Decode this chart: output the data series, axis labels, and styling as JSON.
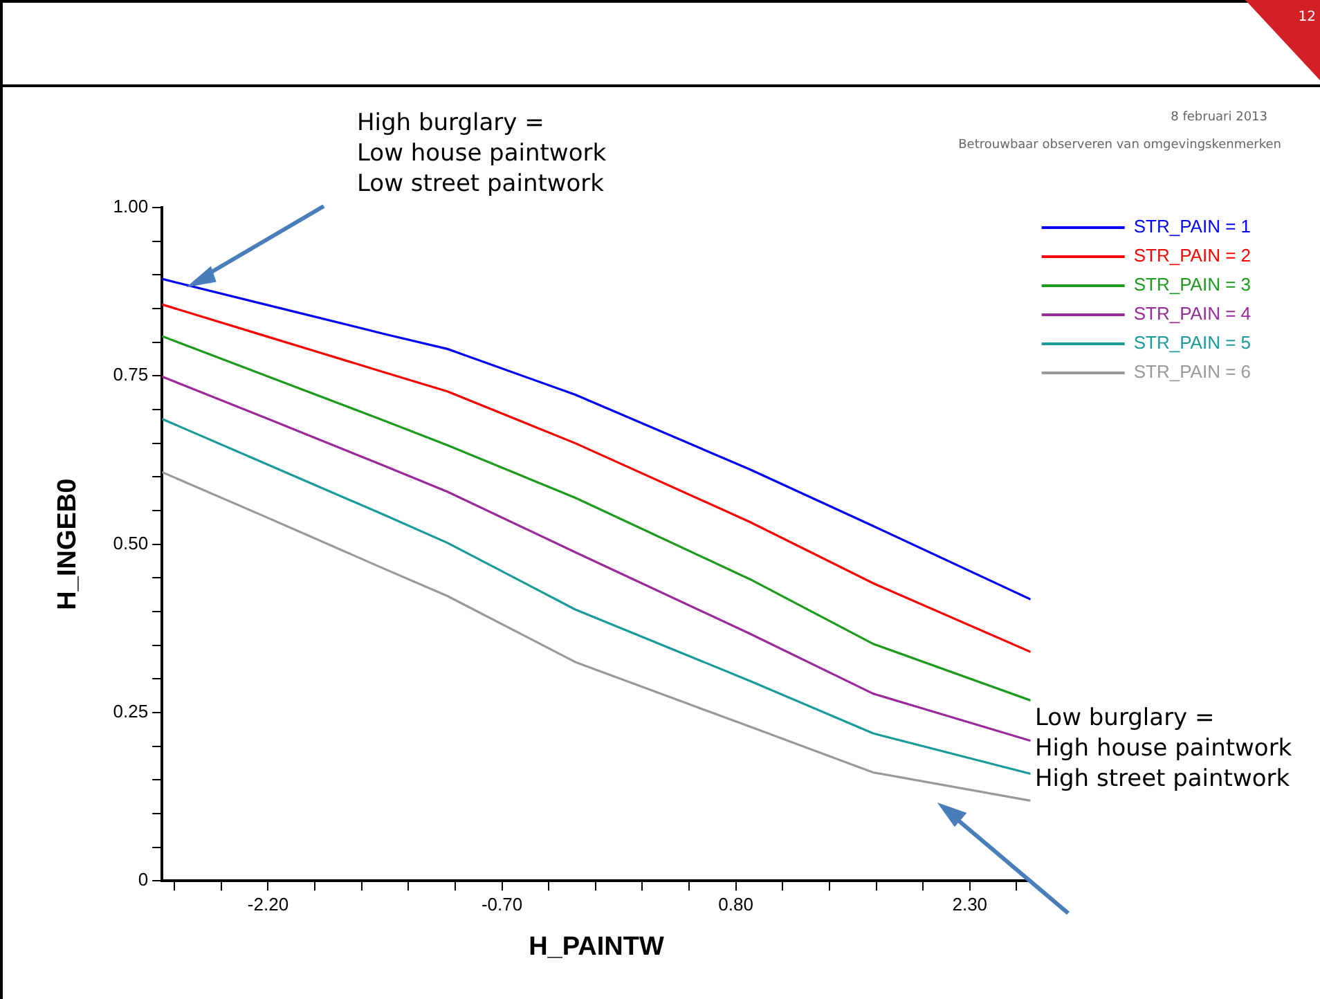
{
  "chart_data": {
    "type": "line",
    "xlabel": "H_PAINTW",
    "ylabel": "H_INGEB0",
    "x": [
      -2.88,
      -2.2,
      -1.45,
      -1.05,
      -0.23,
      0.89,
      1.68,
      2.69
    ],
    "series": [
      {
        "name": "STR_PAIN = 1",
        "color": "#0000ff",
        "values": [
          0.894,
          0.855,
          0.812,
          0.79,
          0.722,
          0.611,
          0.527,
          0.418
        ]
      },
      {
        "name": "STR_PAIN = 2",
        "color": "#ff0000",
        "values": [
          0.856,
          0.808,
          0.755,
          0.727,
          0.65,
          0.533,
          0.442,
          0.34
        ]
      },
      {
        "name": "STR_PAIN = 3",
        "color": "#1e9a1e",
        "values": [
          0.809,
          0.749,
          0.683,
          0.647,
          0.569,
          0.448,
          0.352,
          0.268
        ]
      },
      {
        "name": "STR_PAIN = 4",
        "color": "#9a2a9a",
        "values": [
          0.749,
          0.686,
          0.616,
          0.578,
          0.488,
          0.367,
          0.278,
          0.208
        ]
      },
      {
        "name": "STR_PAIN = 5",
        "color": "#1a9a9a",
        "values": [
          0.686,
          0.618,
          0.543,
          0.502,
          0.403,
          0.297,
          0.219,
          0.159
        ]
      },
      {
        "name": "STR_PAIN = 6",
        "color": "#999999",
        "values": [
          0.607,
          0.539,
          0.463,
          0.423,
          0.325,
          0.229,
          0.161,
          0.119
        ]
      }
    ],
    "xlim": [
      -2.88,
      2.69
    ],
    "xticks": [
      {
        "value": -2.8,
        "label": null
      },
      {
        "value": -2.5,
        "label": null
      },
      {
        "value": -2.2,
        "label": "-2.20"
      },
      {
        "value": -1.9,
        "label": null
      },
      {
        "value": -1.6,
        "label": null
      },
      {
        "value": -1.3,
        "label": null
      },
      {
        "value": -1.0,
        "label": null
      },
      {
        "value": -0.7,
        "label": "-0.70"
      },
      {
        "value": -0.4,
        "label": null
      },
      {
        "value": -0.1,
        "label": null
      },
      {
        "value": 0.2,
        "label": null
      },
      {
        "value": 0.5,
        "label": null
      },
      {
        "value": 0.8,
        "label": "0.80"
      },
      {
        "value": 1.1,
        "label": null
      },
      {
        "value": 1.4,
        "label": null
      },
      {
        "value": 1.7,
        "label": null
      },
      {
        "value": 2.0,
        "label": null
      },
      {
        "value": 2.3,
        "label": "2.30"
      },
      {
        "value": 2.6,
        "label": null
      }
    ],
    "ylim": [
      0,
      1
    ],
    "yticks": [
      0,
      {
        "value": 0.05,
        "label": null
      },
      {
        "value": 0.1,
        "label": null
      },
      {
        "value": 0.15,
        "label": null
      },
      {
        "value": 0.2,
        "label": null
      },
      {
        "value": 0.25,
        "label": "0.25"
      },
      {
        "value": 0.3,
        "label": null
      },
      {
        "value": 0.35,
        "label": null
      },
      {
        "value": 0.4,
        "label": null
      },
      {
        "value": 0.45,
        "label": null
      },
      {
        "value": 0.5,
        "label": "0.50"
      },
      {
        "value": 0.55,
        "label": null
      },
      {
        "value": 0.6,
        "label": null
      },
      {
        "value": 0.65,
        "label": null
      },
      {
        "value": 0.7,
        "label": null
      },
      {
        "value": 0.75,
        "label": "0.75"
      },
      {
        "value": 0.8,
        "label": null
      },
      {
        "value": 0.85,
        "label": null
      },
      {
        "value": 0.9,
        "label": null
      },
      {
        "value": 0.95,
        "label": null
      },
      {
        "value": 1,
        "label": "1.00"
      }
    ],
    "grid": false,
    "legend": "top right",
    "marker": "none",
    "line_style": "solid",
    "annotations": [
      "High burglary =\nLow house paintwork\nLow street paintwork",
      "Low burglary =\nHigh house paintwork\nHigh street paintwork",
      "8 februari 2013",
      "Betrouwbaar observeren van omgevingskenmerken",
      "12"
    ]
  }
}
